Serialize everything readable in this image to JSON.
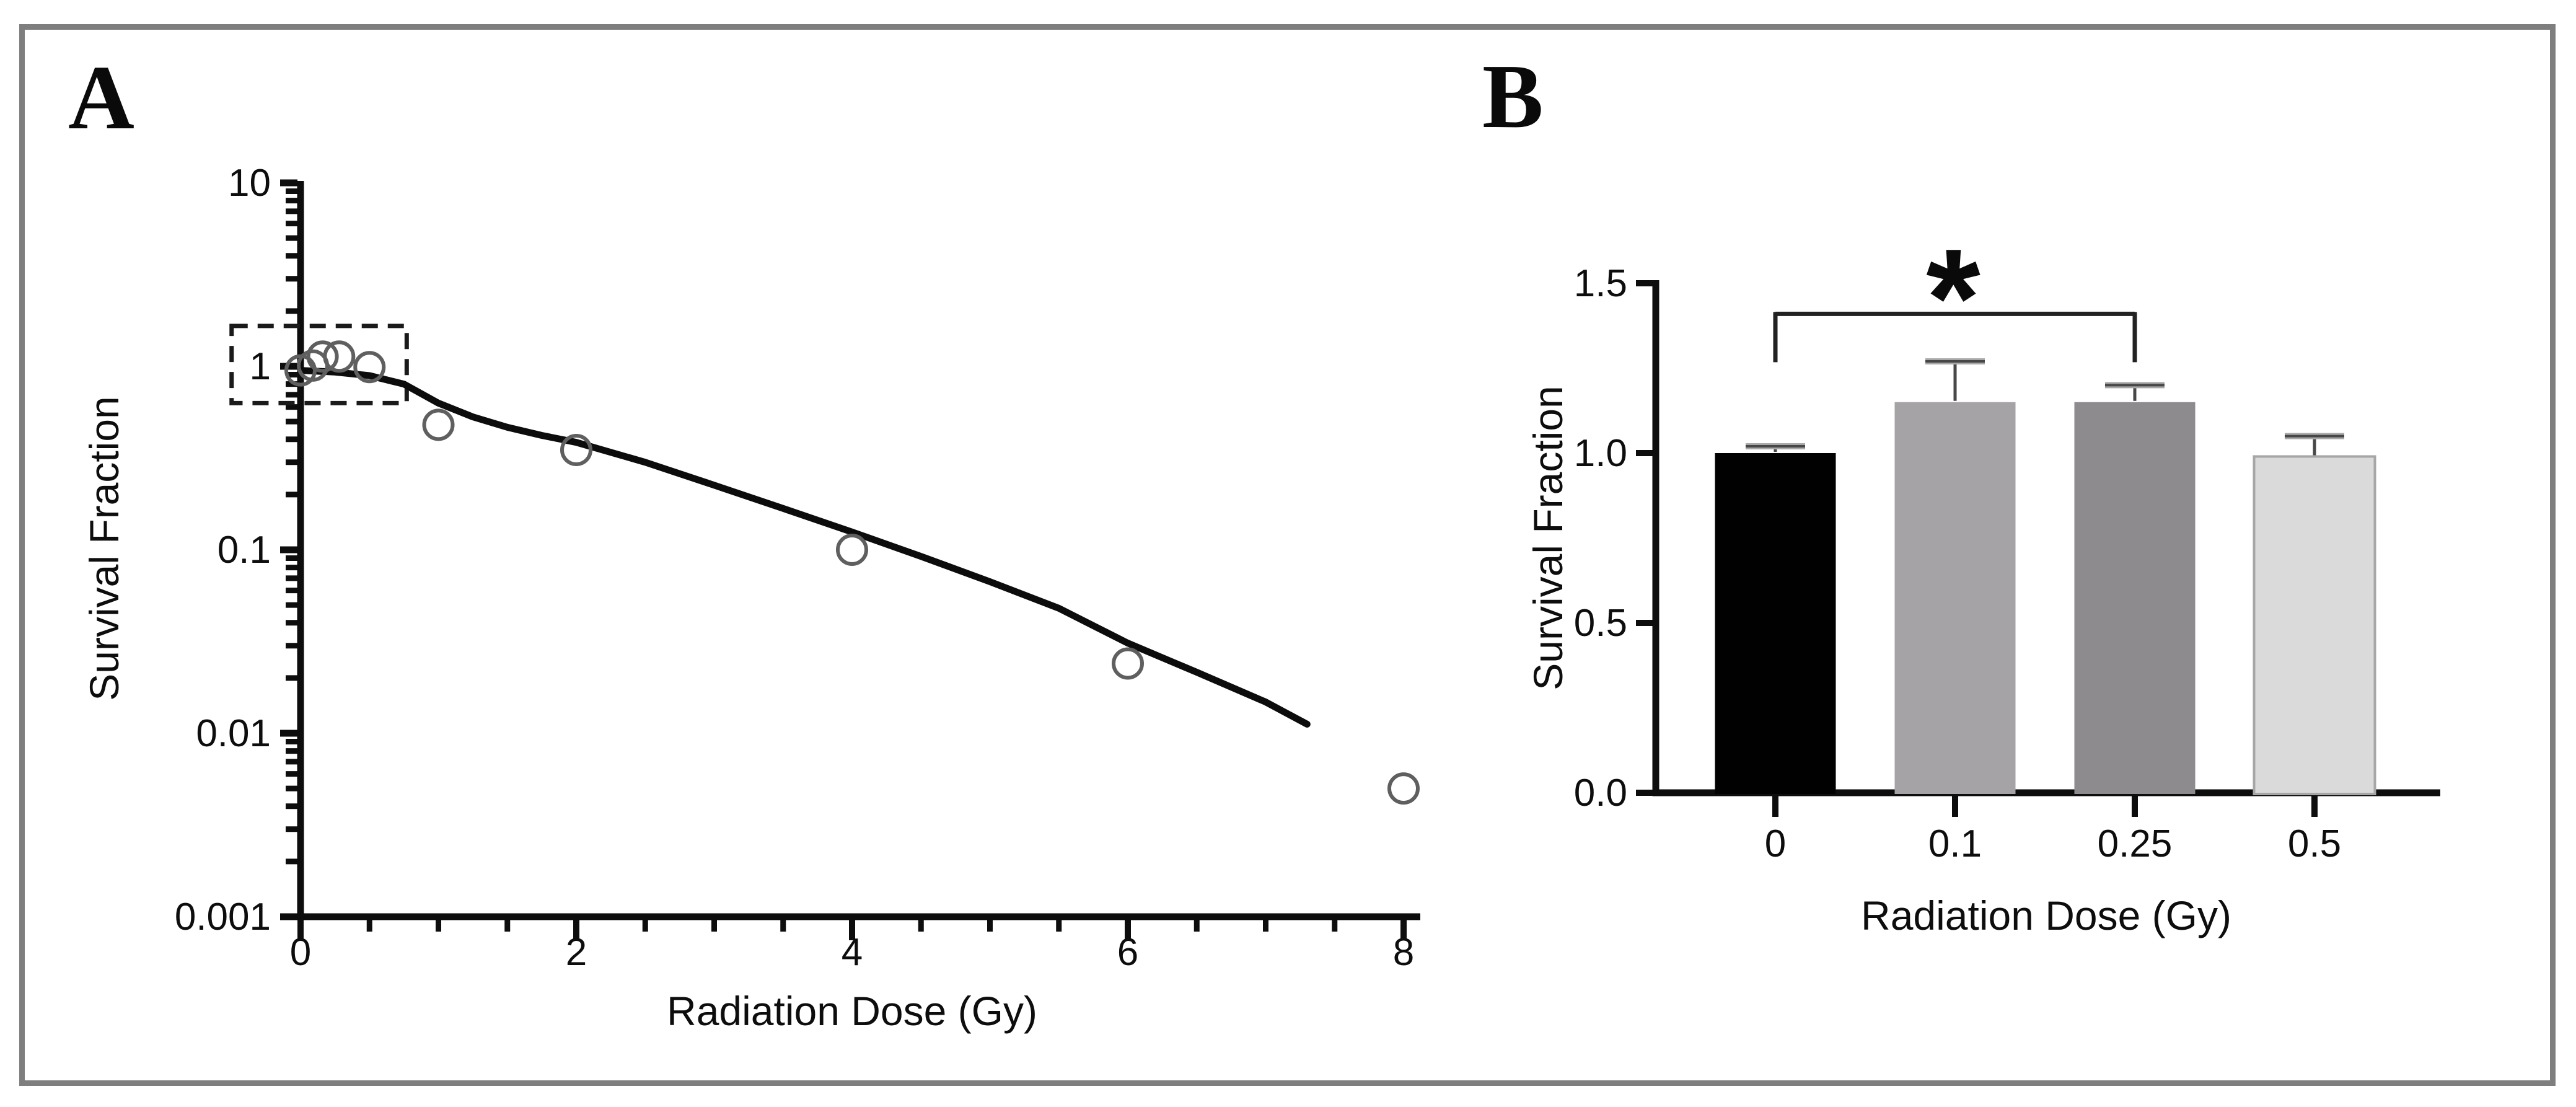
{
  "figure": {
    "background": "#ffffff",
    "border_color": "#7e7e7e",
    "panels": [
      {
        "letter": "A",
        "description": "clonogenic survival curve, log scale"
      },
      {
        "letter": "B",
        "description": "low-dose survival fractions bar chart"
      }
    ]
  },
  "chart_data": [
    {
      "panel": "A",
      "type": "scatter",
      "title": "",
      "xlabel": "Radiation Dose (Gy)",
      "ylabel": "Survival Fraction",
      "x_scale": "linear",
      "y_scale": "log",
      "xlim": [
        0,
        8
      ],
      "ylim": [
        0.001,
        10
      ],
      "x_ticks": [
        0,
        2,
        4,
        6,
        8
      ],
      "x_tick_labels": [
        "0",
        "2",
        "4",
        "6",
        "8"
      ],
      "x_minor_tick_step": 0.5,
      "y_ticks": [
        10,
        1,
        0.1,
        0.01,
        0.001
      ],
      "y_tick_labels": [
        "10",
        "1",
        "0.1",
        "0.01",
        "0.001"
      ],
      "grid": false,
      "legend": null,
      "marker": {
        "shape": "open-circle",
        "color": "#5f5f5f"
      },
      "points": [
        [
          0,
          0.95
        ],
        [
          0.09,
          1.01
        ],
        [
          0.16,
          1.13
        ],
        [
          0.28,
          1.13
        ],
        [
          0.5,
          0.99
        ],
        [
          1,
          0.48
        ],
        [
          2,
          0.35
        ],
        [
          4,
          0.1
        ],
        [
          6,
          0.024
        ],
        [
          8,
          0.005
        ]
      ],
      "fit_curve": [
        [
          0,
          0.95
        ],
        [
          0.25,
          0.93
        ],
        [
          0.5,
          0.89
        ],
        [
          0.75,
          0.8
        ],
        [
          1,
          0.63
        ],
        [
          1.25,
          0.53
        ],
        [
          1.5,
          0.465
        ],
        [
          1.75,
          0.42
        ],
        [
          2,
          0.385
        ],
        [
          2.5,
          0.3
        ],
        [
          3,
          0.225
        ],
        [
          3.5,
          0.168
        ],
        [
          4,
          0.125
        ],
        [
          4.5,
          0.092
        ],
        [
          5,
          0.067
        ],
        [
          5.5,
          0.048
        ],
        [
          6,
          0.031
        ],
        [
          6.5,
          0.0215
        ],
        [
          7,
          0.0148
        ],
        [
          7.3,
          0.0112
        ]
      ],
      "dashed_box": {
        "x_range": [
          -0.5,
          0.77
        ],
        "y_range": [
          0.63,
          1.66
        ]
      }
    },
    {
      "panel": "B",
      "type": "bar",
      "title": "",
      "xlabel": "Radiation Dose (Gy)",
      "ylabel": "Survival Fraction",
      "categories": [
        "0",
        "0.1",
        "0.25",
        "0.5"
      ],
      "values": [
        1.0,
        1.15,
        1.15,
        0.99
      ],
      "errors_plus": [
        0.02,
        0.12,
        0.05,
        0.06
      ],
      "bar_colors": [
        "#010101",
        "#a5a3a6",
        "#8d8b8e",
        "#dadada"
      ],
      "bar_border_colors": [
        null,
        null,
        null,
        "#a6a6a6"
      ],
      "error_bar_color": "#474747",
      "error_cap_color": "#a8a8a8",
      "ylim": [
        0,
        1.5
      ],
      "y_ticks": [
        0,
        0.5,
        1.0,
        1.5
      ],
      "y_tick_labels": [
        "0.0",
        "0.5",
        "1.0",
        "1.5"
      ],
      "grid": false,
      "legend": null,
      "significance": {
        "from": "0",
        "to": "0.25",
        "label": "*",
        "bracket_y_value": 1.41
      }
    }
  ]
}
